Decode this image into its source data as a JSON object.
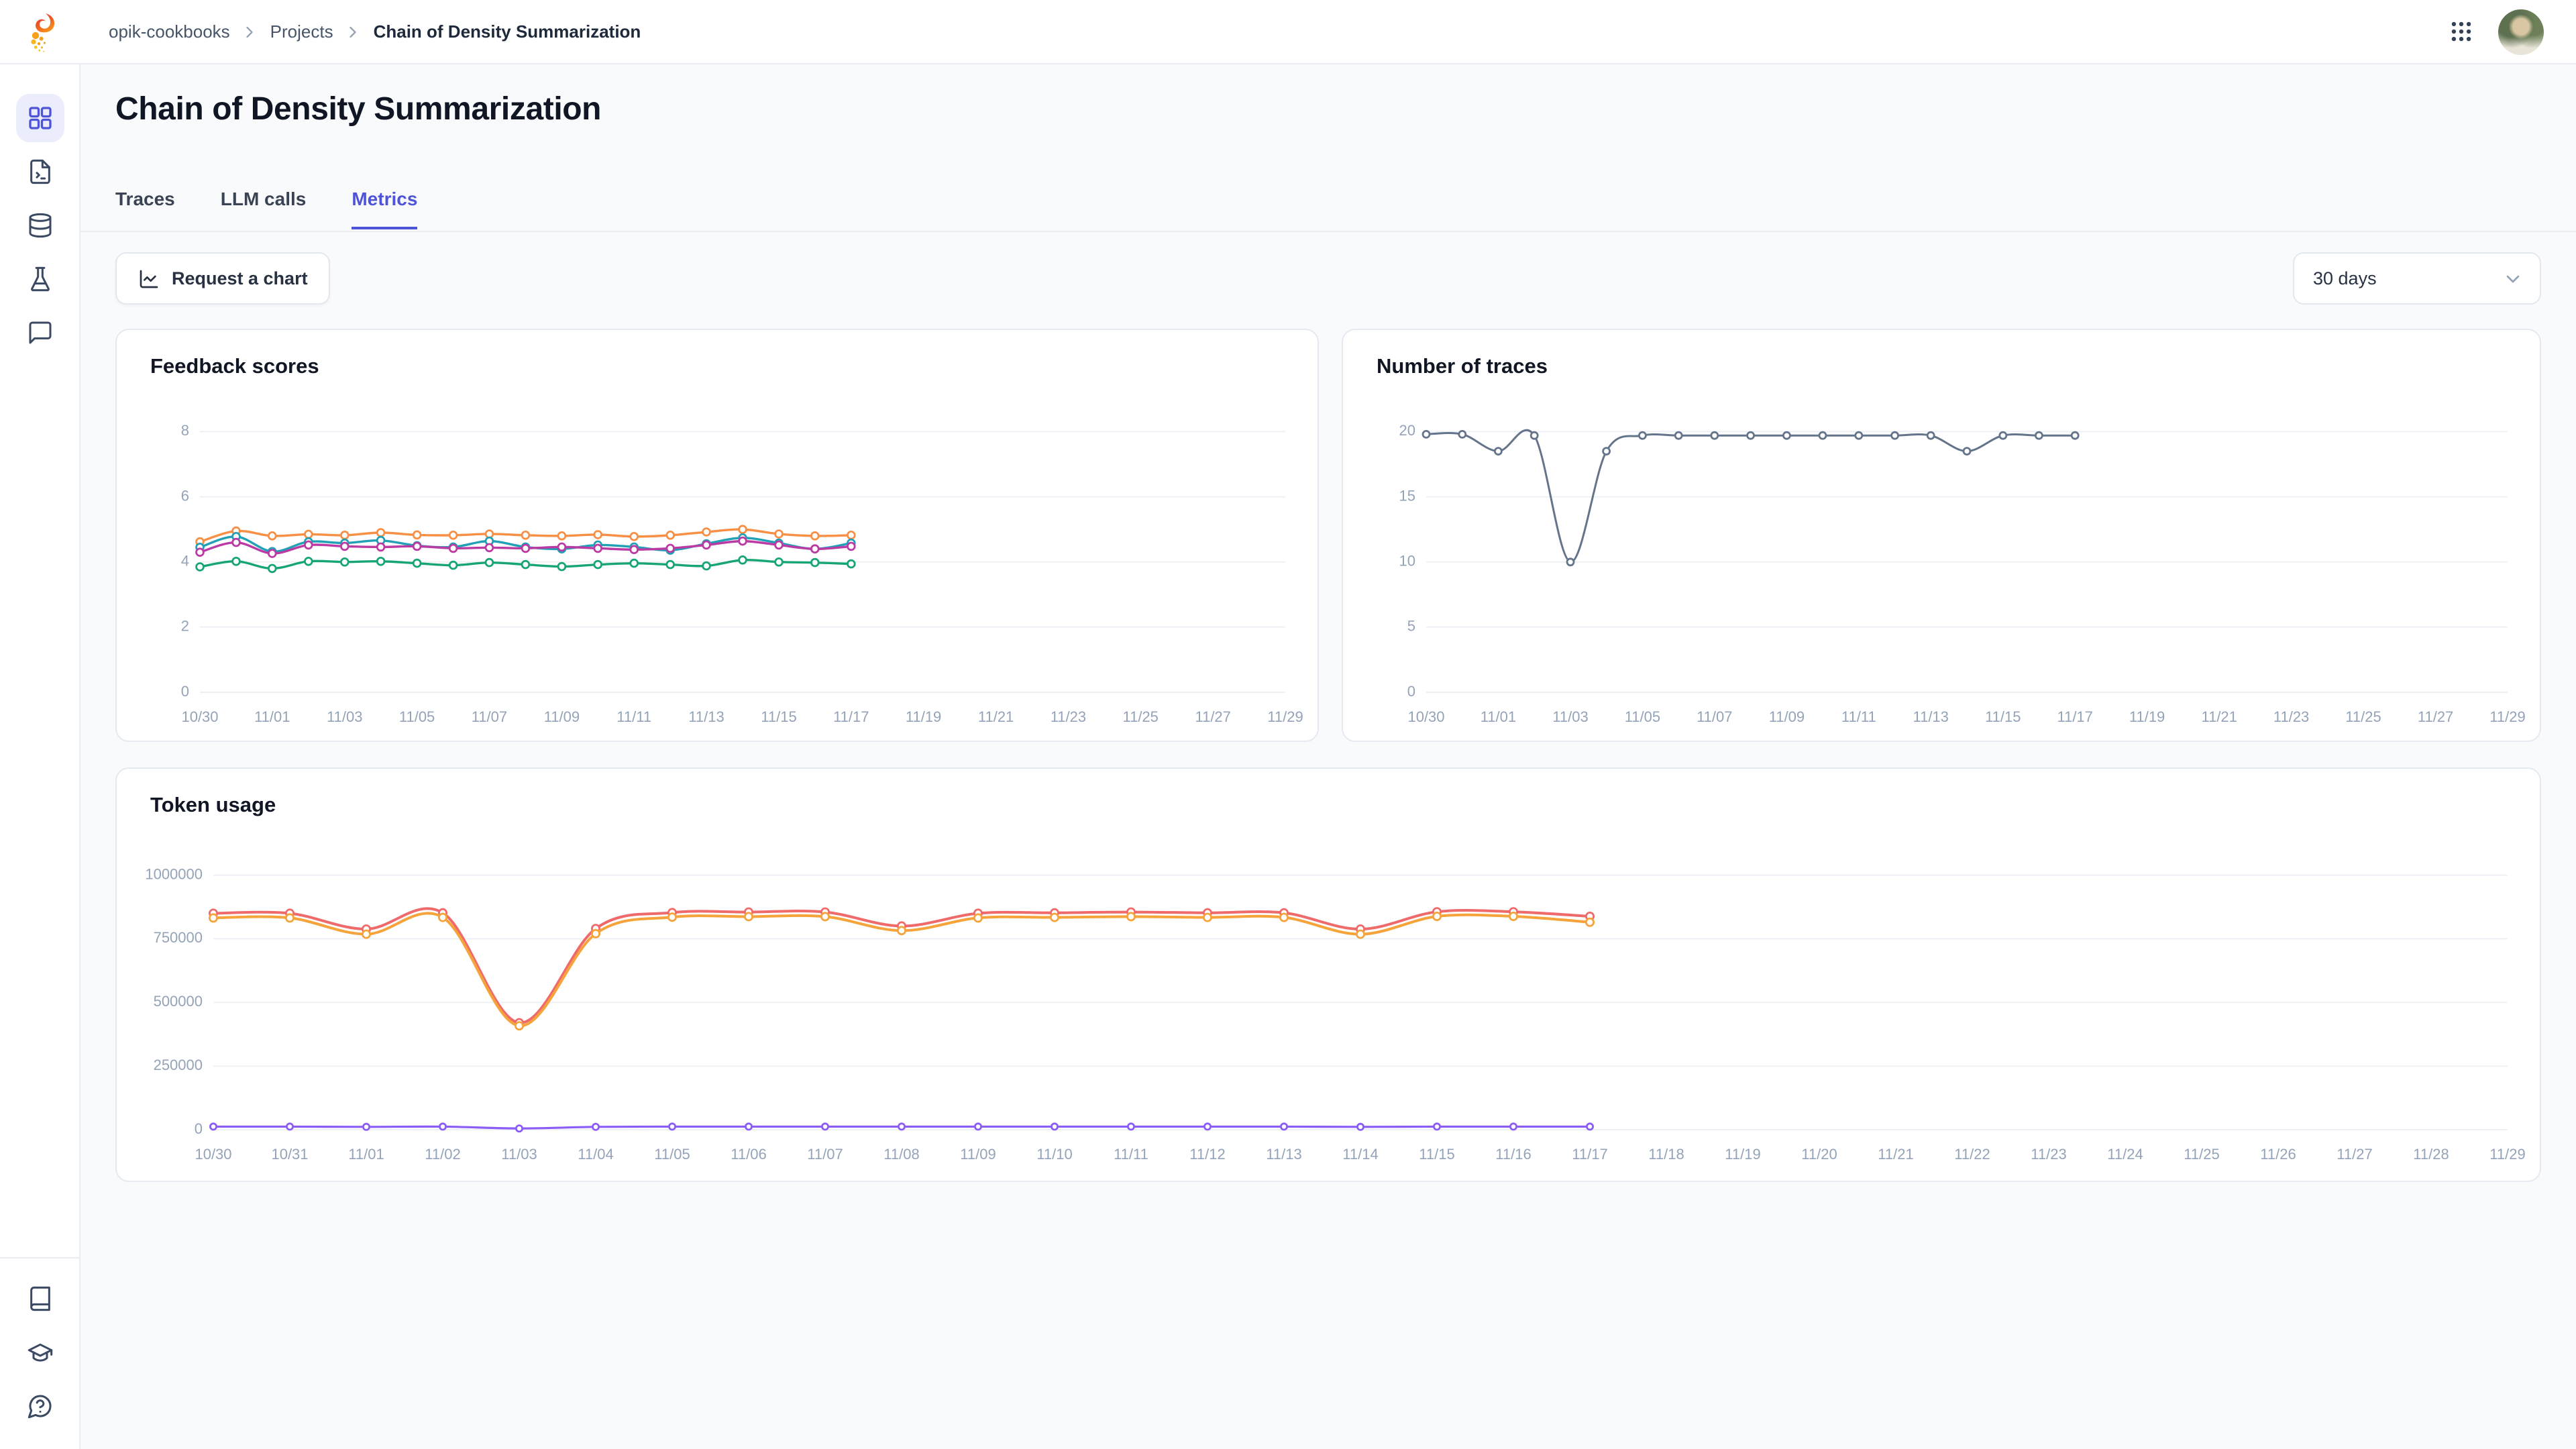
{
  "theme": {
    "accent": "#4e55da",
    "title_text": "#101623",
    "muted_text": "#94a3b8",
    "card_border": "#e5e9f0",
    "grid_line": "#edf1f6"
  },
  "topbar": {
    "breadcrumb": {
      "items": [
        "opik-cookbooks",
        "Projects",
        "Chain of Density Summarization"
      ]
    },
    "grip_icon": "apps-grid-icon",
    "avatar": "user-avatar"
  },
  "sidebar": {
    "top_icons": [
      "projects-grid-icon",
      "prompt-file-icon",
      "datasets-database-icon",
      "experiments-flask-icon",
      "feedback-chat-icon"
    ],
    "bottom_icons": [
      "documentation-book-icon",
      "quickstart-graduation-cap-icon",
      "help-question-bubble-icon"
    ],
    "active_index": 0
  },
  "page": {
    "title": "Chain of Density Summarization",
    "tabs": [
      {
        "label": "Traces",
        "active": false
      },
      {
        "label": "LLM calls",
        "active": false
      },
      {
        "label": "Metrics",
        "active": true
      }
    ]
  },
  "toolbar": {
    "request_chart_label": "Request a chart",
    "range_selector": {
      "value": "30 days"
    }
  },
  "chart_data": [
    {
      "id": "feedback-scores",
      "type": "line",
      "title": "Feedback scores",
      "xlabel": "",
      "ylabel": "",
      "categories": [
        "10/30",
        "10/31",
        "11/01",
        "11/02",
        "11/03",
        "11/04",
        "11/05",
        "11/06",
        "11/07",
        "11/08",
        "11/09",
        "11/10",
        "11/11",
        "11/12",
        "11/13",
        "11/14",
        "11/15",
        "11/16",
        "11/17",
        "11/18",
        "11/19",
        "11/20",
        "11/21",
        "11/22",
        "11/23",
        "11/24",
        "11/25",
        "11/26",
        "11/27",
        "11/28",
        "11/29"
      ],
      "x_label_step": 2,
      "ylim": [
        0,
        8.4
      ],
      "yticks": [
        0,
        2,
        4,
        6,
        8
      ],
      "grid": true,
      "legend": "none",
      "series": [
        {
          "color": "#f78f45",
          "width": 1.7,
          "marker_r": 2.7,
          "values": [
            4.62,
            4.95,
            4.8,
            4.85,
            4.82,
            4.9,
            4.83,
            4.82,
            4.86,
            4.82,
            4.8,
            4.84,
            4.78,
            4.82,
            4.92,
            5.0,
            4.86,
            4.8,
            4.82
          ]
        },
        {
          "color": "#22a0b6",
          "width": 1.7,
          "marker_r": 2.7,
          "values": [
            4.45,
            4.78,
            4.32,
            4.62,
            4.58,
            4.66,
            4.5,
            4.46,
            4.64,
            4.46,
            4.4,
            4.52,
            4.46,
            4.36,
            4.56,
            4.74,
            4.58,
            4.4,
            4.58
          ]
        },
        {
          "color": "#bb3aa4",
          "width": 1.7,
          "marker_r": 2.7,
          "values": [
            4.3,
            4.6,
            4.26,
            4.52,
            4.48,
            4.46,
            4.48,
            4.42,
            4.44,
            4.42,
            4.46,
            4.42,
            4.38,
            4.42,
            4.52,
            4.64,
            4.52,
            4.4,
            4.48
          ]
        },
        {
          "color": "#17a673",
          "width": 1.7,
          "marker_r": 2.7,
          "values": [
            3.85,
            4.02,
            3.8,
            4.02,
            4.0,
            4.02,
            3.96,
            3.9,
            3.98,
            3.92,
            3.86,
            3.92,
            3.96,
            3.92,
            3.88,
            4.06,
            4.0,
            3.98,
            3.94
          ]
        }
      ]
    },
    {
      "id": "number-of-traces",
      "type": "line",
      "title": "Number of traces",
      "xlabel": "",
      "ylabel": "",
      "categories": [
        "10/30",
        "10/31",
        "11/01",
        "11/02",
        "11/03",
        "11/04",
        "11/05",
        "11/06",
        "11/07",
        "11/08",
        "11/09",
        "11/10",
        "11/11",
        "11/12",
        "11/13",
        "11/14",
        "11/15",
        "11/16",
        "11/17",
        "11/18",
        "11/19",
        "11/20",
        "11/21",
        "11/22",
        "11/23",
        "11/24",
        "11/25",
        "11/26",
        "11/27",
        "11/28",
        "11/29"
      ],
      "x_label_step": 2,
      "ylim": [
        0,
        21
      ],
      "yticks": [
        0,
        5,
        10,
        15,
        20
      ],
      "grid": true,
      "legend": "none",
      "series": [
        {
          "color": "#64748b",
          "width": 1.5,
          "marker_r": 2.5,
          "values": [
            19.8,
            19.8,
            18.5,
            19.7,
            10,
            18.5,
            19.7,
            19.7,
            19.7,
            19.7,
            19.7,
            19.7,
            19.7,
            19.7,
            19.7,
            18.5,
            19.7,
            19.7,
            19.7
          ]
        }
      ]
    },
    {
      "id": "token-usage",
      "type": "line",
      "title": "Token usage",
      "xlabel": "",
      "ylabel": "",
      "categories": [
        "10/30",
        "10/31",
        "11/01",
        "11/02",
        "11/03",
        "11/04",
        "11/05",
        "11/06",
        "11/07",
        "11/08",
        "11/09",
        "11/10",
        "11/11",
        "11/12",
        "11/13",
        "11/14",
        "11/15",
        "11/16",
        "11/17",
        "11/18",
        "11/19",
        "11/20",
        "11/21",
        "11/22",
        "11/23",
        "11/24",
        "11/25",
        "11/26",
        "11/27",
        "11/28",
        "11/29"
      ],
      "x_label_step": 1,
      "ylim": [
        0,
        1070000
      ],
      "yticks": [
        0,
        250000,
        500000,
        750000,
        1000000
      ],
      "grid": true,
      "legend": "none",
      "series": [
        {
          "color": "#ef6a6a",
          "width": 2,
          "marker_r": 2.8,
          "values": [
            850000,
            850000,
            788000,
            852000,
            420000,
            790000,
            853000,
            855000,
            855000,
            800000,
            850000,
            852000,
            855000,
            852000,
            852000,
            788000,
            856000,
            856000,
            838000
          ]
        },
        {
          "color": "#f5a33b",
          "width": 2,
          "marker_r": 2.8,
          "values": [
            832000,
            832000,
            768000,
            834000,
            408000,
            770000,
            835000,
            837000,
            837000,
            782000,
            832000,
            834000,
            837000,
            834000,
            834000,
            768000,
            838000,
            838000,
            815000
          ]
        },
        {
          "color": "#8b5cf6",
          "width": 1.6,
          "marker_r": 2.3,
          "values": [
            12000,
            12000,
            11000,
            12000,
            5000,
            11000,
            12000,
            12000,
            12000,
            12000,
            12000,
            12000,
            12000,
            12000,
            12000,
            11000,
            12000,
            12000,
            12000
          ]
        }
      ]
    }
  ]
}
